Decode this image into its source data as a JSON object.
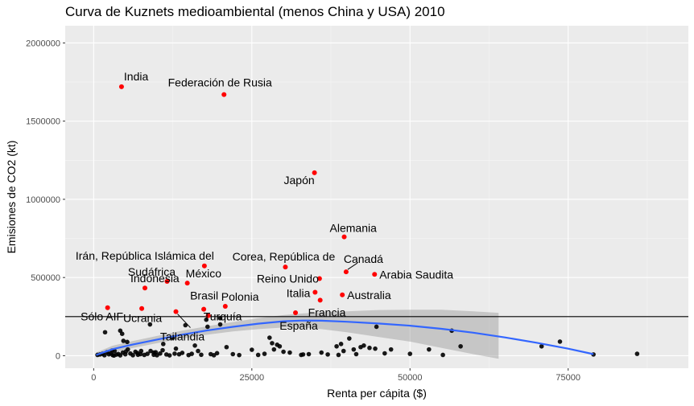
{
  "chart_data": {
    "type": "scatter",
    "title": "Curva de Kuznets medioambiental (menos China y USA) 2010",
    "xlabel": "Renta per cápita ($)",
    "ylabel": "Emisiones de CO2 (kt)",
    "xlim": [
      -4500,
      94000
    ],
    "ylim": [
      -80000,
      2110000
    ],
    "x_ticks": [
      {
        "value": 0,
        "label": "0"
      },
      {
        "value": 25000,
        "label": "25000"
      },
      {
        "value": 50000,
        "label": "50000"
      },
      {
        "value": 75000,
        "label": "75000"
      }
    ],
    "y_ticks": [
      {
        "value": 0,
        "label": "0"
      },
      {
        "value": 500000,
        "label": "500000"
      },
      {
        "value": 1000000,
        "label": "1000000"
      },
      {
        "value": 1500000,
        "label": "1500000"
      },
      {
        "value": 2000000,
        "label": "2000000"
      }
    ],
    "grid": true,
    "threshold_line": {
      "y": 250000
    },
    "colors": {
      "panel": "#ebebeb",
      "grid_major": "#ffffff",
      "grid_minor": "#f5f5f5",
      "highlight": "#ff0000",
      "other": "#000000",
      "smooth": "#3366ff",
      "ribbon": "#999999"
    },
    "highlighted_points": [
      {
        "label": "India",
        "x": 4400,
        "y": 1720000
      },
      {
        "label": "Federación de Rusia",
        "x": 20600,
        "y": 1670000
      },
      {
        "label": "Japón",
        "x": 34900,
        "y": 1170000
      },
      {
        "label": "Alemania",
        "x": 39600,
        "y": 760000
      },
      {
        "label": "Irán, República Islámica del",
        "x": 17500,
        "y": 574000
      },
      {
        "label": "Corea, República de",
        "x": 30300,
        "y": 567000
      },
      {
        "label": "Canadá",
        "x": 39900,
        "y": 536000
      },
      {
        "label": "Arabia Saudita",
        "x": 44400,
        "y": 520000
      },
      {
        "label": "Reino Unido",
        "x": 35700,
        "y": 493000
      },
      {
        "label": "Sudáfrica",
        "x": 11600,
        "y": 475000
      },
      {
        "label": "México",
        "x": 14800,
        "y": 464000
      },
      {
        "label": "Indonesia",
        "x": 8100,
        "y": 433000
      },
      {
        "label": "Italia",
        "x": 35000,
        "y": 406000
      },
      {
        "label": "Australia",
        "x": 39300,
        "y": 389000
      },
      {
        "label": "Francia",
        "x": 35800,
        "y": 355000
      },
      {
        "label": "Polonia",
        "x": 20800,
        "y": 316000
      },
      {
        "label": "Sólo AIF",
        "x": 2200,
        "y": 307000
      },
      {
        "label": "Ucrania",
        "x": 7600,
        "y": 302000
      },
      {
        "label": "Brasil",
        "x": 17400,
        "y": 297000
      },
      {
        "label": "Tailandia",
        "x": 13000,
        "y": 282000
      },
      {
        "label": "España",
        "x": 31900,
        "y": 275000
      },
      {
        "label": "Turquía",
        "x": 18100,
        "y": 256000
      }
    ],
    "other_points": [
      [
        1800,
        150000
      ],
      [
        4200,
        160000
      ],
      [
        4500,
        140000
      ],
      [
        8900,
        200000
      ],
      [
        11000,
        75000
      ],
      [
        12500,
        115000
      ],
      [
        14500,
        195000
      ],
      [
        18000,
        185000
      ],
      [
        17800,
        230000
      ],
      [
        20000,
        240000
      ],
      [
        20000,
        200000
      ],
      [
        21000,
        55000
      ],
      [
        16000,
        65000
      ],
      [
        7500,
        30000
      ],
      [
        9500,
        20000
      ],
      [
        25000,
        38000
      ],
      [
        27800,
        115000
      ],
      [
        28200,
        80000
      ],
      [
        28500,
        40000
      ],
      [
        29000,
        70000
      ],
      [
        29400,
        60000
      ],
      [
        31000,
        20000
      ],
      [
        32800,
        5000
      ],
      [
        33100,
        8000
      ],
      [
        38400,
        60000
      ],
      [
        38700,
        5000
      ],
      [
        39100,
        75000
      ],
      [
        39500,
        30000
      ],
      [
        40400,
        110000
      ],
      [
        41100,
        40000
      ],
      [
        42200,
        55000
      ],
      [
        42700,
        65000
      ],
      [
        43600,
        50000
      ],
      [
        44500,
        45000
      ],
      [
        44700,
        185000
      ],
      [
        47000,
        40000
      ],
      [
        53000,
        40000
      ],
      [
        55200,
        5000
      ],
      [
        56600,
        160000
      ],
      [
        58000,
        60000
      ],
      [
        70800,
        60000
      ],
      [
        73700,
        90000
      ],
      [
        79000,
        8000
      ],
      [
        85900,
        12000
      ],
      [
        600,
        5000
      ],
      [
        1000,
        8000
      ],
      [
        1400,
        12000
      ],
      [
        1700,
        3000
      ],
      [
        2100,
        22000
      ],
      [
        2400,
        9000
      ],
      [
        2700,
        15000
      ],
      [
        3000,
        4000
      ],
      [
        3300,
        30000
      ],
      [
        3600,
        7000
      ],
      [
        3900,
        11000
      ],
      [
        4200,
        2000
      ],
      [
        4600,
        20000
      ],
      [
        5000,
        9000
      ],
      [
        5400,
        40000
      ],
      [
        5800,
        14000
      ],
      [
        6200,
        3000
      ],
      [
        6600,
        25000
      ],
      [
        7000,
        6000
      ],
      [
        7400,
        10000
      ],
      [
        8000,
        5000
      ],
      [
        8500,
        12000
      ],
      [
        9000,
        30000
      ],
      [
        9500,
        6000
      ],
      [
        10000,
        3000
      ],
      [
        10500,
        14000
      ],
      [
        11500,
        8000
      ],
      [
        12000,
        2000
      ],
      [
        13000,
        45000
      ],
      [
        13500,
        9000
      ],
      [
        14000,
        18000
      ],
      [
        15000,
        4000
      ],
      [
        15500,
        12000
      ],
      [
        16500,
        30000
      ],
      [
        17000,
        6000
      ],
      [
        18500,
        10000
      ],
      [
        19000,
        3000
      ],
      [
        19500,
        16000
      ],
      [
        22000,
        10000
      ],
      [
        23000,
        4000
      ],
      [
        26000,
        5000
      ],
      [
        27000,
        12000
      ],
      [
        30000,
        25000
      ],
      [
        34000,
        10000
      ],
      [
        36000,
        20000
      ],
      [
        37000,
        8000
      ],
      [
        41500,
        10000
      ],
      [
        46000,
        15000
      ],
      [
        50000,
        12000
      ],
      [
        3200,
        1000
      ],
      [
        5100,
        27000
      ],
      [
        6900,
        17000
      ],
      [
        9800,
        22000
      ],
      [
        12800,
        13000
      ],
      [
        2900,
        33000
      ],
      [
        4700,
        95000
      ],
      [
        5300,
        88000
      ],
      [
        10900,
        35000
      ]
    ],
    "smooth_line": [
      [
        400,
        5000
      ],
      [
        3000,
        42000
      ],
      [
        6000,
        70000
      ],
      [
        10000,
        103000
      ],
      [
        14000,
        135000
      ],
      [
        18000,
        162000
      ],
      [
        22000,
        185000
      ],
      [
        26000,
        205000
      ],
      [
        30000,
        220000
      ],
      [
        33000,
        225000
      ],
      [
        36000,
        224000
      ],
      [
        40000,
        217000
      ],
      [
        45000,
        206000
      ],
      [
        50000,
        192000
      ],
      [
        55000,
        172000
      ],
      [
        60000,
        147000
      ],
      [
        65000,
        117000
      ],
      [
        70000,
        83000
      ],
      [
        75000,
        45000
      ],
      [
        79000,
        10000
      ]
    ],
    "ribbon": [
      [
        400,
        -10000,
        20000
      ],
      [
        3000,
        20000,
        64000
      ],
      [
        6000,
        48000,
        92000
      ],
      [
        10000,
        80000,
        126000
      ],
      [
        14000,
        110000,
        160000
      ],
      [
        18000,
        135000,
        189000
      ],
      [
        22000,
        155000,
        215000
      ],
      [
        26000,
        170000,
        240000
      ],
      [
        30000,
        180000,
        260000
      ],
      [
        33000,
        180000,
        270000
      ],
      [
        36000,
        170000,
        278000
      ],
      [
        40000,
        150000,
        284000
      ],
      [
        45000,
        120000,
        292000
      ],
      [
        50000,
        90000,
        294000
      ],
      [
        55000,
        50000,
        294000
      ],
      [
        60000,
        10000,
        284000
      ],
      [
        64000,
        -20000,
        274000
      ]
    ]
  }
}
